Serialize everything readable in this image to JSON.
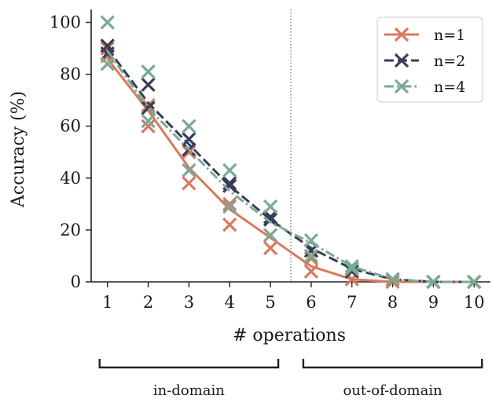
{
  "chart_data": {
    "type": "line",
    "xlabel": "# operations",
    "ylabel": "Accuracy (%)",
    "xlim": [
      0.6,
      10.4
    ],
    "ylim": [
      0,
      105
    ],
    "x_ticks": [
      1,
      2,
      3,
      4,
      5,
      6,
      7,
      8,
      9,
      10
    ],
    "y_ticks": [
      0,
      20,
      40,
      60,
      80,
      100
    ],
    "divider_x": 5.5,
    "legend_position": "top-right",
    "series": [
      {
        "name": "n=1",
        "color": "#d9785e",
        "line_style": "solid",
        "x": [
          1,
          2,
          3,
          4,
          5,
          6,
          7,
          8,
          9,
          10
        ],
        "mean": [
          86,
          66,
          44,
          28,
          17,
          6,
          1,
          0,
          0,
          0
        ],
        "points": [
          [
            1,
            90
          ],
          [
            1,
            87
          ],
          [
            2,
            68
          ],
          [
            2,
            60
          ],
          [
            3,
            50
          ],
          [
            3,
            38
          ],
          [
            4,
            30
          ],
          [
            4,
            22
          ],
          [
            5,
            18
          ],
          [
            5,
            13
          ],
          [
            6,
            9
          ],
          [
            6,
            4
          ],
          [
            7,
            1
          ],
          [
            8,
            0
          ],
          [
            9,
            0
          ],
          [
            10,
            0
          ]
        ]
      },
      {
        "name": "n=2",
        "color": "#3a3c58",
        "line_style": "dashed",
        "x": [
          1,
          2,
          3,
          4,
          5,
          6,
          7,
          8,
          9,
          10
        ],
        "mean": [
          90,
          69,
          53,
          37,
          24,
          13,
          5,
          1,
          0,
          0
        ],
        "points": [
          [
            1,
            91
          ],
          [
            1,
            88
          ],
          [
            2,
            76
          ],
          [
            2,
            67
          ],
          [
            3,
            55
          ],
          [
            3,
            51
          ],
          [
            4,
            38
          ],
          [
            4,
            37
          ],
          [
            5,
            25
          ],
          [
            5,
            24
          ],
          [
            6,
            12
          ],
          [
            6,
            10
          ],
          [
            7,
            5
          ],
          [
            7,
            4
          ],
          [
            8,
            1
          ],
          [
            9,
            0
          ],
          [
            10,
            0
          ]
        ]
      },
      {
        "name": "n=4",
        "color": "#7aaa94",
        "line_style": "dashdot",
        "x": [
          1,
          2,
          3,
          4,
          5,
          6,
          7,
          8,
          9,
          10
        ],
        "mean": [
          89,
          67,
          51,
          35,
          23,
          15,
          6,
          1,
          0,
          0
        ],
        "points": [
          [
            1,
            100
          ],
          [
            1,
            84
          ],
          [
            2,
            81
          ],
          [
            2,
            62
          ],
          [
            3,
            60
          ],
          [
            3,
            43
          ],
          [
            4,
            43
          ],
          [
            4,
            29
          ],
          [
            5,
            29
          ],
          [
            5,
            18
          ],
          [
            6,
            16
          ],
          [
            6,
            10
          ],
          [
            7,
            6
          ],
          [
            7,
            5
          ],
          [
            8,
            1
          ],
          [
            9,
            0
          ],
          [
            10,
            0
          ]
        ]
      }
    ],
    "brackets": [
      {
        "label": "in-domain",
        "from": 1,
        "to": 5
      },
      {
        "label": "out-of-domain",
        "from": 6,
        "to": 10
      }
    ]
  }
}
